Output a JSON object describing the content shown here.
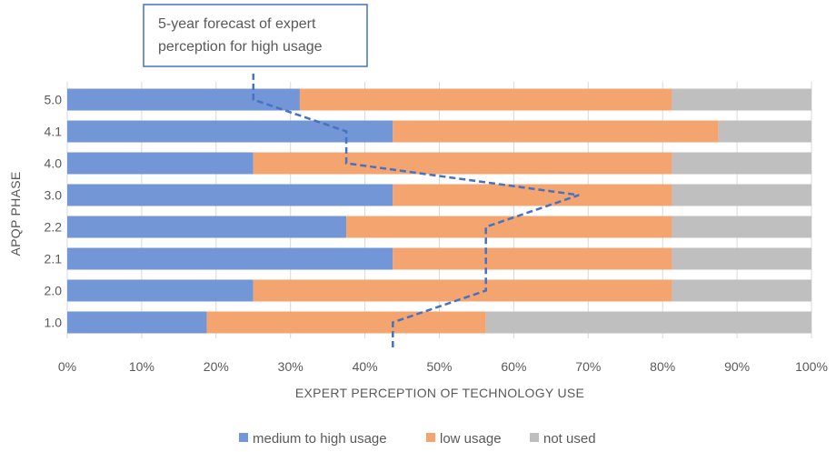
{
  "chart_data": {
    "type": "bar",
    "orientation": "horizontal",
    "stacked": "percent",
    "categories": [
      "1.0",
      "2.0",
      "2.1",
      "2.2",
      "3.0",
      "4.0",
      "4.1",
      "5.0"
    ],
    "series": [
      {
        "name": "medium to high usage",
        "color": "#7396D7",
        "values": [
          18.75,
          25,
          43.75,
          37.5,
          43.75,
          25,
          43.75,
          31.25
        ]
      },
      {
        "name": "low usage",
        "color": "#F4A46E",
        "values": [
          37.5,
          56.25,
          37.5,
          43.75,
          37.5,
          56.25,
          43.75,
          50
        ]
      },
      {
        "name": "not used",
        "color": "#BFBFBF",
        "values": [
          43.75,
          18.75,
          18.75,
          18.75,
          18.75,
          18.75,
          12.5,
          18.75
        ]
      }
    ],
    "forecast": {
      "label": "5-year forecast of expert perception for high usage",
      "label_lines": [
        "5-year forecast of expert",
        "perception for high usage"
      ],
      "color": "#4472C4",
      "values": [
        43.75,
        56.25,
        56.25,
        56.25,
        68.75,
        37.5,
        37.5,
        25
      ]
    },
    "xticks": [
      "0%",
      "10%",
      "20%",
      "30%",
      "40%",
      "50%",
      "60%",
      "70%",
      "80%",
      "90%",
      "100%"
    ],
    "xlim": [
      0,
      100
    ],
    "xlabel": "EXPERT PERCEPTION OF TECHNOLOGY USE",
    "ylabel": "APQP PHASE",
    "grid": true,
    "legend": "bottom"
  }
}
